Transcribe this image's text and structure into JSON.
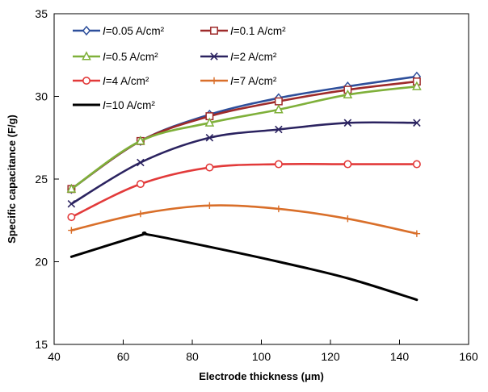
{
  "chart_data": {
    "type": "line",
    "xlabel": "Electrode thickness (μm)",
    "ylabel": "Specific capacitance (F/g)",
    "xlim": [
      40,
      160
    ],
    "ylim": [
      15,
      35
    ],
    "x_ticks": [
      40,
      60,
      80,
      100,
      120,
      140,
      160
    ],
    "y_ticks": [
      15,
      20,
      25,
      30,
      35
    ],
    "grid": false,
    "legend_position": "top-left inside",
    "x": [
      45,
      65,
      85,
      105,
      125,
      145
    ],
    "series": [
      {
        "name_var": "I",
        "name_rest": "=0.05 A/cm²",
        "color": "#2e4f9b",
        "marker": "diamond",
        "smooth": true,
        "values": [
          24.4,
          27.3,
          28.9,
          29.9,
          30.6,
          31.2
        ]
      },
      {
        "name_var": "I",
        "name_rest": "=0.1 A/cm²",
        "color": "#9e2a2a",
        "marker": "square",
        "smooth": true,
        "values": [
          24.4,
          27.3,
          28.8,
          29.7,
          30.4,
          30.9
        ]
      },
      {
        "name_var": "I",
        "name_rest": "=0.5 A/cm²",
        "color": "#7fb03a",
        "marker": "triangle",
        "smooth": true,
        "values": [
          24.4,
          27.3,
          28.4,
          29.2,
          30.1,
          30.6
        ]
      },
      {
        "name_var": "I",
        "name_rest": "=2 A/cm²",
        "color": "#2b2360",
        "marker": "x",
        "smooth": true,
        "values": [
          23.5,
          26.0,
          27.5,
          28.0,
          28.4,
          28.4
        ]
      },
      {
        "name_var": "I",
        "name_rest": "=4 A/cm²",
        "color": "#e23a3a",
        "marker": "circle",
        "smooth": true,
        "values": [
          22.7,
          24.7,
          25.7,
          25.9,
          25.9,
          25.9
        ]
      },
      {
        "name_var": "I",
        "name_rest": "=7 A/cm²",
        "color": "#d96f2a",
        "marker": "plus",
        "smooth": true,
        "values": [
          21.9,
          22.9,
          23.4,
          23.2,
          22.6,
          21.7
        ]
      },
      {
        "name_var": "I",
        "name_rest": "=10 A/cm²",
        "color": "#000000",
        "marker": "none",
        "smooth": true,
        "values": [
          20.3,
          21.6,
          20.9,
          20.0,
          19.0,
          17.7
        ],
        "extra_points": [
          [
            67,
            21.65
          ]
        ]
      }
    ]
  }
}
